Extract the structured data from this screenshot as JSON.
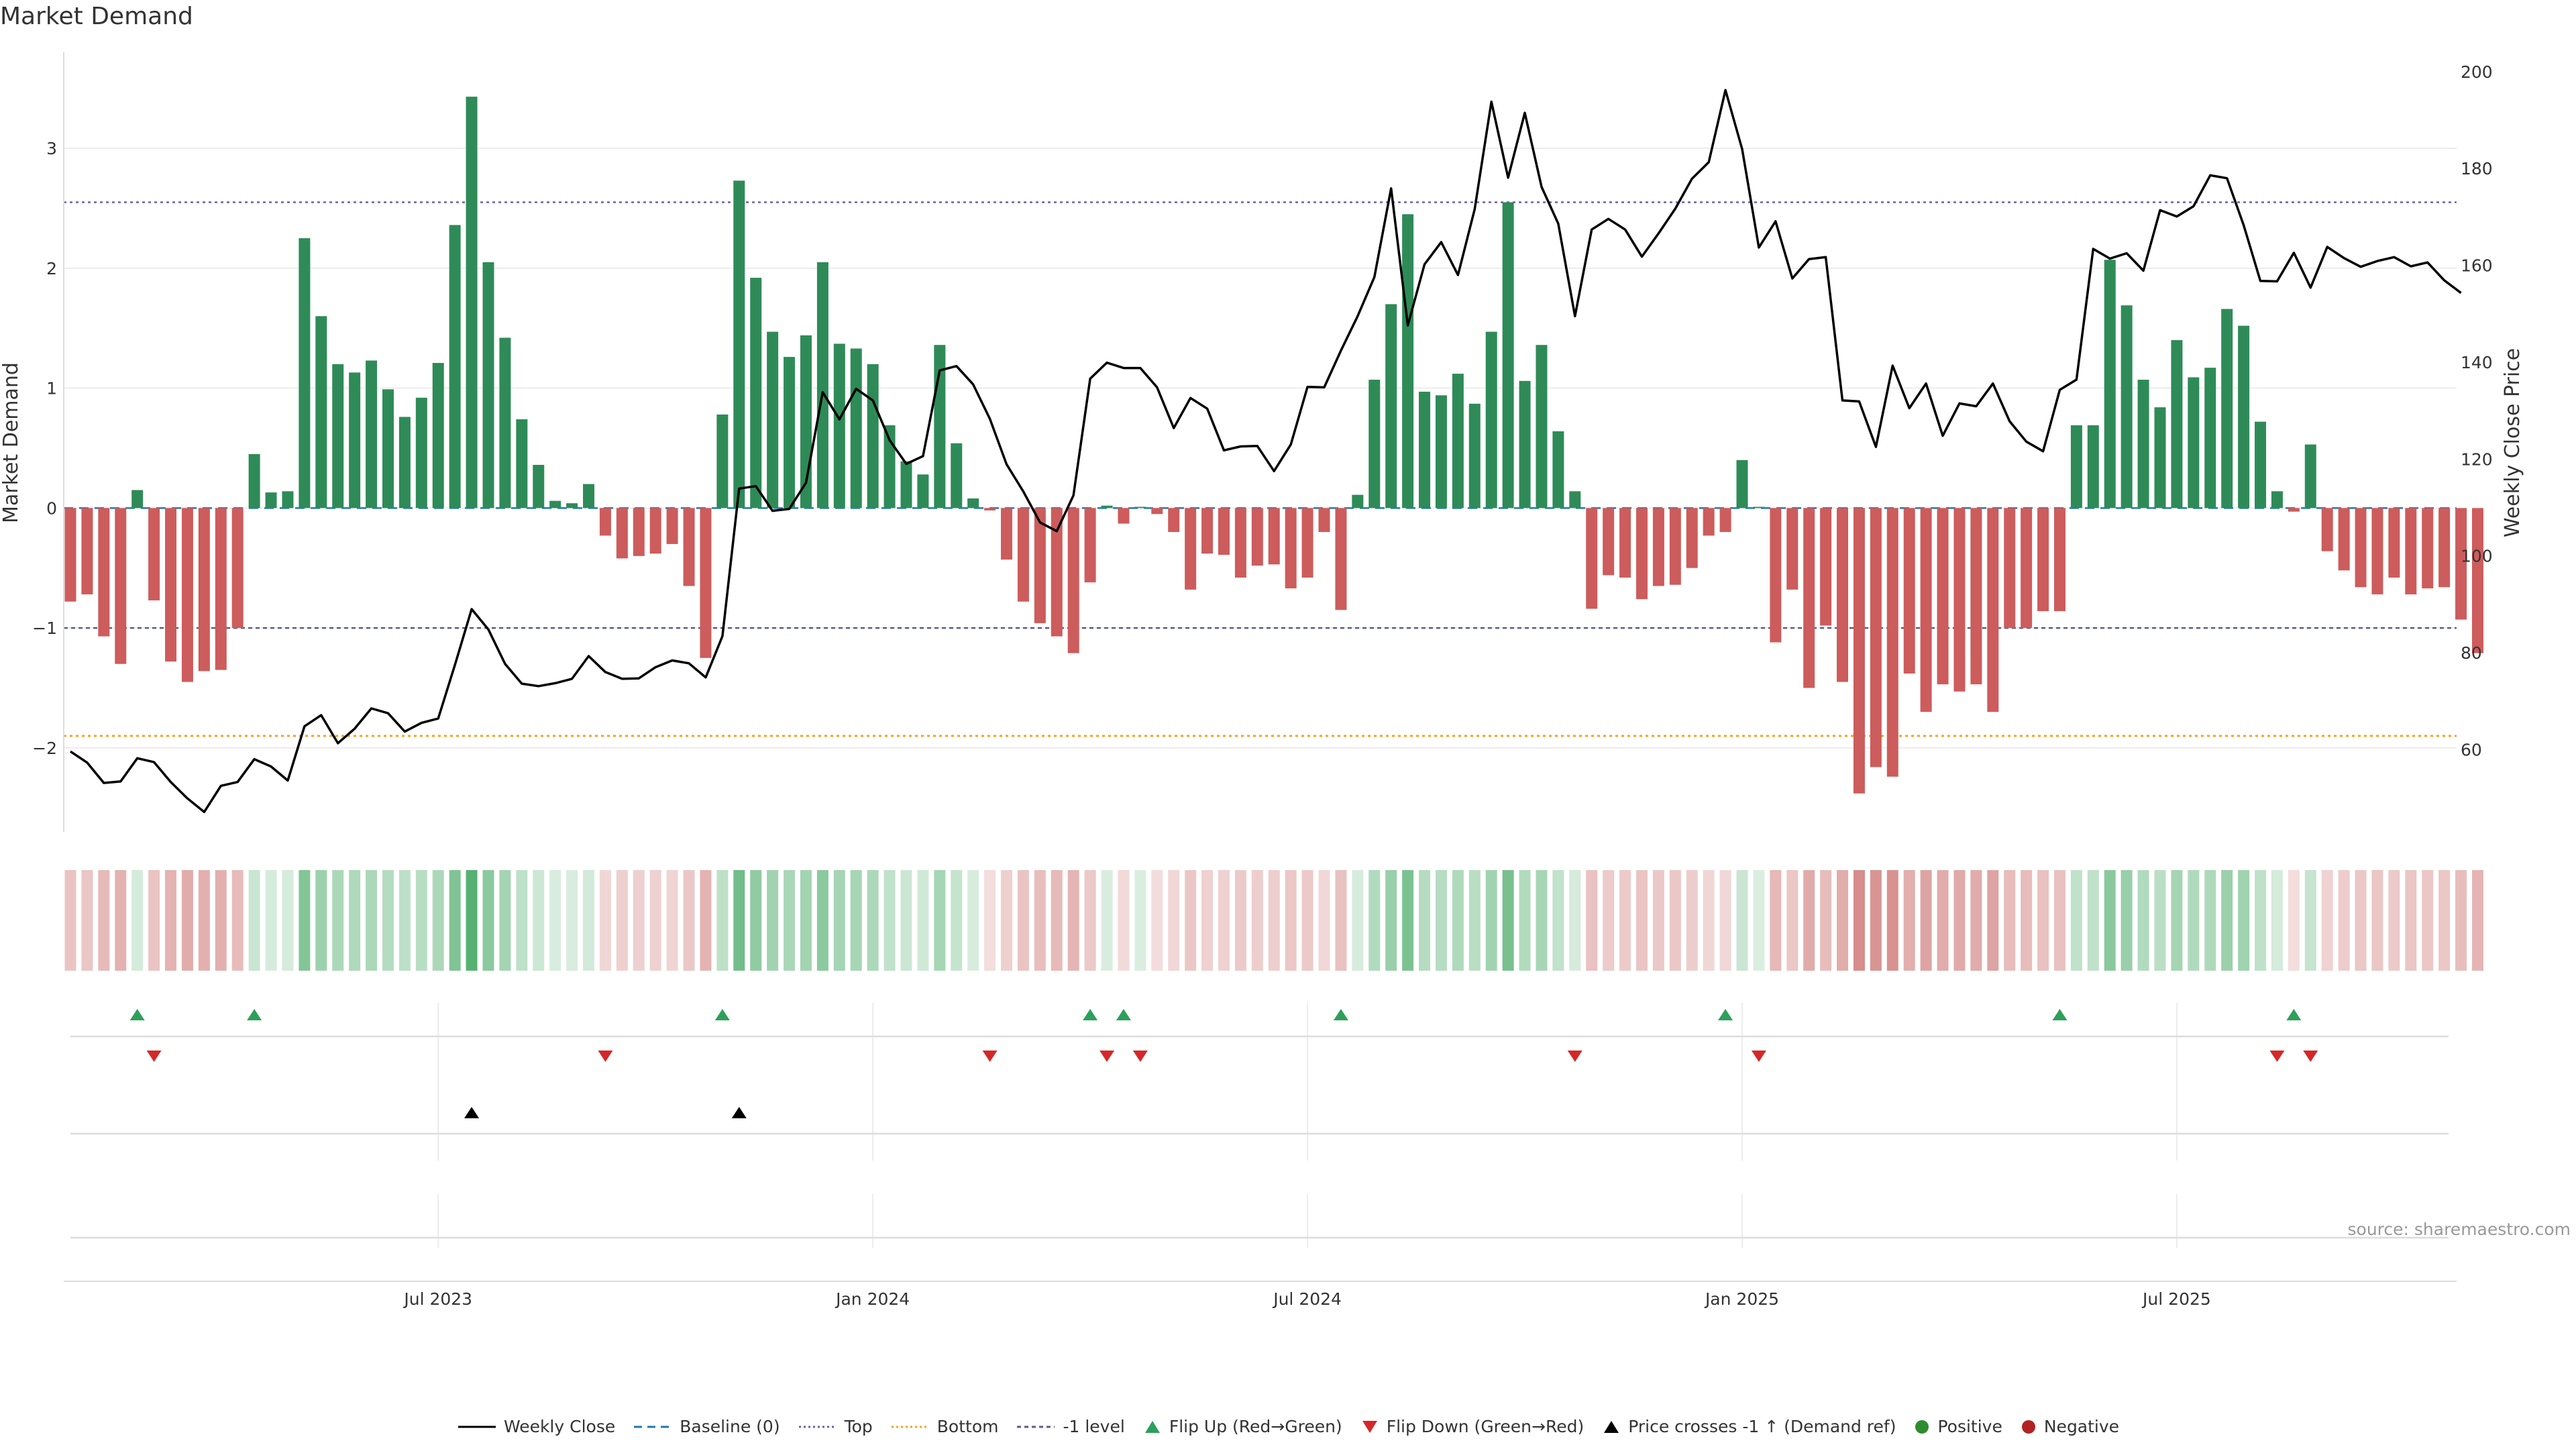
{
  "title": "Market Demand",
  "source": "source: sharemaestro.com",
  "colors": {
    "positive": "#2e8b57",
    "negative": "#cd5c5c",
    "flip_up": "#2ca05a",
    "flip_down": "#d62728",
    "price_cross": "#000000",
    "top_line": "#6b5fb5",
    "bottom_line": "#ff9f1c",
    "minus1_line": "#5a5a8a",
    "baseline": "#1f77b4",
    "price_line": "#000000"
  },
  "chart_data": {
    "type": "bar",
    "title": "Market Demand",
    "ylabel": "Market Demand",
    "y2label": "Weekly Close Price",
    "ylim": [
      -2.7,
      3.8
    ],
    "y2lim": [
      43,
      204
    ],
    "y_ticks": [
      -2,
      -1,
      0,
      1,
      2,
      3
    ],
    "y_tick_labels": [
      "−2",
      "−1",
      "0",
      "1",
      "2",
      "3"
    ],
    "y2_ticks": [
      60,
      80,
      100,
      120,
      140,
      160,
      180,
      200
    ],
    "x_ticks": [
      {
        "week": 22,
        "label": "Jul 2023"
      },
      {
        "week": 48,
        "label": "Jan 2024"
      },
      {
        "week": 74,
        "label": "Jul 2024"
      },
      {
        "week": 100,
        "label": "Jan 2025"
      },
      {
        "week": 126,
        "label": "Jul 2025"
      }
    ],
    "reference_lines": {
      "top": 2.55,
      "bottom": -1.9,
      "minus1": -1.0,
      "baseline": 0
    },
    "series": [
      {
        "name": "Market Demand",
        "values": [
          -0.78,
          -0.72,
          -1.07,
          -1.3,
          0.15,
          -0.77,
          -1.28,
          -1.45,
          -1.36,
          -1.35,
          -1.0,
          0.45,
          0.13,
          0.14,
          2.25,
          1.6,
          1.2,
          1.13,
          1.23,
          0.99,
          0.76,
          0.92,
          1.21,
          2.36,
          3.43,
          2.05,
          1.42,
          0.74,
          0.36,
          0.06,
          0.04,
          0.2,
          -0.23,
          -0.42,
          -0.4,
          -0.38,
          -0.3,
          -0.65,
          -1.25,
          0.78,
          2.73,
          1.92,
          1.47,
          1.26,
          1.44,
          2.05,
          1.37,
          1.33,
          1.2,
          0.69,
          0.39,
          0.28,
          1.36,
          0.54,
          0.08,
          -0.02,
          -0.43,
          -0.78,
          -0.96,
          -1.07,
          -1.21,
          -0.62,
          0.02,
          -0.13,
          0.01,
          -0.05,
          -0.2,
          -0.68,
          -0.38,
          -0.39,
          -0.58,
          -0.48,
          -0.47,
          -0.67,
          -0.58,
          -0.2,
          -0.85,
          0.11,
          1.07,
          1.7,
          2.45,
          0.97,
          0.94,
          1.12,
          0.87,
          1.47,
          2.55,
          1.06,
          1.36,
          0.64,
          0.14,
          -0.84,
          -0.56,
          -0.58,
          -0.76,
          -0.65,
          -0.64,
          -0.5,
          -0.23,
          -0.2,
          0.4,
          0.01,
          -1.12,
          -0.68,
          -1.5,
          -0.98,
          -1.45,
          -2.38,
          -2.16,
          -2.24,
          -1.38,
          -1.7,
          -1.47,
          -1.53,
          -1.47,
          -1.7,
          -1.0,
          -1.0,
          -0.86,
          -0.86,
          0.69,
          0.69,
          2.07,
          1.69,
          1.07,
          0.84,
          1.4,
          1.09,
          1.17,
          1.66,
          1.52,
          0.72,
          0.14,
          -0.03,
          0.53,
          -0.36,
          -0.52,
          -0.66,
          -0.72,
          -0.58,
          -0.72,
          -0.67,
          -0.66,
          -0.93,
          -1.21
        ]
      },
      {
        "name": "Weekly Close",
        "axis": "y2",
        "values": [
          59.6,
          57.3,
          53.1,
          53.4,
          58.2,
          57.4,
          53.3,
          49.9,
          47.1,
          52.5,
          53.3,
          58.0,
          56.5,
          53.6,
          64.8,
          67.1,
          61.3,
          64.3,
          68.5,
          67.5,
          63.7,
          65.5,
          66.4,
          77.5,
          89.0,
          84.8,
          77.7,
          73.6,
          73.1,
          73.7,
          74.6,
          79.3,
          76.0,
          74.6,
          74.7,
          77.0,
          78.4,
          77.8,
          74.9,
          83.4,
          113.9,
          114.4,
          109.3,
          109.7,
          115.1,
          133.8,
          128.2,
          134.5,
          132.1,
          123.9,
          119.0,
          120.6,
          138.3,
          139.2,
          135.4,
          128.3,
          118.9,
          113.3,
          106.9,
          105.1,
          112.5,
          136.6,
          139.9,
          138.8,
          138.8,
          134.8,
          126.4,
          132.6,
          130.4,
          121.8,
          122.6,
          122.7,
          117.5,
          123.0,
          134.9,
          134.8,
          142.4,
          149.5,
          157.6,
          175.9,
          147.6,
          160.2,
          164.8,
          158.0,
          171.6,
          193.8,
          178.1,
          191.5,
          176.2,
          168.6,
          149.5,
          167.4,
          169.6,
          167.4,
          161.8,
          166.6,
          171.7,
          177.9,
          181.3,
          196.2,
          184.0,
          163.7,
          169.1,
          157.3,
          161.3,
          161.7,
          132.1,
          131.9,
          122.5,
          139.3,
          130.5,
          135.6,
          124.8,
          131.5,
          130.9,
          135.6,
          127.8,
          123.6,
          121.6,
          134.3,
          136.4,
          163.4,
          161.4,
          162.5,
          158.9,
          171.4,
          170.1,
          172.2,
          178.6,
          178.0,
          168.3,
          156.8,
          156.7,
          162.6,
          155.4,
          163.8,
          161.5,
          159.7,
          160.9,
          161.7,
          159.8,
          160.6,
          156.9,
          154.3
        ]
      }
    ],
    "legend": [
      "Weekly Close",
      "Baseline (0)",
      "Top",
      "Bottom",
      "-1 level",
      "Flip Up (Red→Green)",
      "Flip Down (Green→Red)",
      "Price crosses -1 ↑ (Demand ref)",
      "Positive",
      "Negative"
    ],
    "legend_placement": "bottom",
    "events": {
      "flip_up_weeks": [
        4,
        11,
        39,
        61,
        63,
        76,
        99,
        119,
        133
      ],
      "flip_down_weeks": [
        5,
        32,
        55,
        62,
        64,
        90,
        101,
        132,
        134
      ],
      "price_cross_weeks": [
        24,
        40
      ]
    }
  }
}
